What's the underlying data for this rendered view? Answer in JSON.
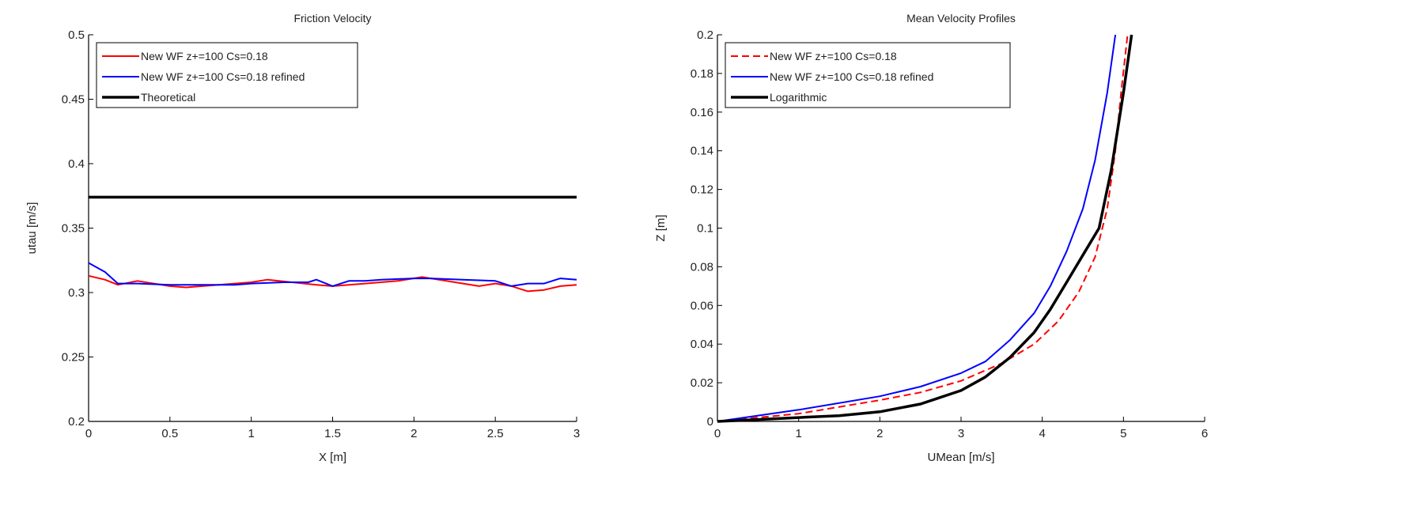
{
  "chart_data": [
    {
      "type": "line",
      "title": "Friction Velocity",
      "xlabel": "X [m]",
      "ylabel": "utau [m/s]",
      "xlim": [
        0,
        3
      ],
      "ylim": [
        0.2,
        0.5
      ],
      "xticks": [
        0,
        0.5,
        1,
        1.5,
        2,
        2.5,
        3
      ],
      "xtick_labels": [
        "0",
        "0.5",
        "1",
        "1.5",
        "2",
        "2.5",
        "3"
      ],
      "yticks": [
        0.2,
        0.25,
        0.3,
        0.35,
        0.4,
        0.45,
        0.5
      ],
      "ytick_labels": [
        "0.2",
        "0.25",
        "0.3",
        "0.35",
        "0.4",
        "0.45",
        "0.5"
      ],
      "legend_position": "top-left",
      "series": [
        {
          "name": "New WF z+=100 Cs=0.18",
          "color": "#ff0000",
          "style": "solid",
          "width": 2,
          "x": [
            0,
            0.1,
            0.18,
            0.3,
            0.4,
            0.5,
            0.6,
            0.8,
            1.0,
            1.1,
            1.25,
            1.4,
            1.5,
            1.7,
            1.9,
            2.05,
            2.2,
            2.4,
            2.5,
            2.6,
            2.7,
            2.8,
            2.9,
            3.0
          ],
          "y": [
            0.313,
            0.31,
            0.306,
            0.309,
            0.307,
            0.305,
            0.304,
            0.306,
            0.308,
            0.31,
            0.308,
            0.306,
            0.305,
            0.307,
            0.309,
            0.312,
            0.309,
            0.305,
            0.307,
            0.305,
            0.301,
            0.302,
            0.305,
            0.306
          ]
        },
        {
          "name": "New WF z+=100 Cs=0.18 refined",
          "color": "#0000ff",
          "style": "solid",
          "width": 2,
          "x": [
            0,
            0.1,
            0.18,
            0.3,
            0.5,
            0.7,
            0.9,
            1.0,
            1.2,
            1.35,
            1.4,
            1.5,
            1.6,
            1.7,
            1.8,
            2.0,
            2.1,
            2.3,
            2.5,
            2.6,
            2.7,
            2.8,
            2.9,
            3.0
          ],
          "y": [
            0.323,
            0.316,
            0.307,
            0.307,
            0.306,
            0.306,
            0.306,
            0.307,
            0.308,
            0.308,
            0.31,
            0.305,
            0.309,
            0.309,
            0.31,
            0.311,
            0.311,
            0.31,
            0.309,
            0.305,
            0.307,
            0.307,
            0.311,
            0.31
          ]
        },
        {
          "name": "Theoretical",
          "color": "#000000",
          "style": "solid",
          "width": 3.5,
          "x": [
            0,
            3
          ],
          "y": [
            0.374,
            0.374
          ]
        }
      ]
    },
    {
      "type": "line",
      "title": "Mean Velocity Profiles",
      "xlabel": "UMean [m/s]",
      "ylabel": "Z [m]",
      "xlim": [
        0,
        6
      ],
      "ylim": [
        0,
        0.2
      ],
      "xticks": [
        0,
        1,
        2,
        3,
        4,
        5,
        6
      ],
      "xtick_labels": [
        "0",
        "1",
        "2",
        "3",
        "4",
        "5",
        "6"
      ],
      "yticks": [
        0,
        0.02,
        0.04,
        0.06,
        0.08,
        0.1,
        0.12,
        0.14,
        0.16,
        0.18,
        0.2
      ],
      "ytick_labels": [
        "0",
        "0.02",
        "0.04",
        "0.06",
        "0.08",
        "0.1",
        "0.12",
        "0.14",
        "0.16",
        "0.18",
        "0.2"
      ],
      "legend_position": "top-left",
      "series": [
        {
          "name": "New WF z+=100 Cs=0.18",
          "color": "#ff0000",
          "style": "dashed",
          "width": 2,
          "x": [
            0,
            1,
            2,
            2.5,
            3,
            3.5,
            3.9,
            4.2,
            4.45,
            4.65,
            4.8,
            4.9,
            4.97,
            5.05
          ],
          "y": [
            0,
            0.004,
            0.011,
            0.015,
            0.021,
            0.03,
            0.04,
            0.052,
            0.067,
            0.085,
            0.11,
            0.14,
            0.17,
            0.2
          ]
        },
        {
          "name": "New WF z+=100 Cs=0.18 refined",
          "color": "#0000ff",
          "style": "solid",
          "width": 2,
          "x": [
            0,
            1,
            2,
            2.5,
            3,
            3.3,
            3.6,
            3.9,
            4.1,
            4.3,
            4.5,
            4.65,
            4.8,
            4.9
          ],
          "y": [
            0,
            0.006,
            0.013,
            0.018,
            0.025,
            0.031,
            0.042,
            0.056,
            0.07,
            0.088,
            0.11,
            0.135,
            0.17,
            0.2
          ]
        },
        {
          "name": "Logarithmic",
          "color": "#000000",
          "style": "solid",
          "width": 3.5,
          "x": [
            0,
            0.5,
            1,
            1.5,
            2,
            2.5,
            3,
            3.3,
            3.6,
            3.9,
            4.1,
            4.3,
            4.5,
            4.7,
            4.85,
            5.0,
            5.1
          ],
          "y": [
            0,
            0.001,
            0.002,
            0.003,
            0.005,
            0.009,
            0.016,
            0.023,
            0.033,
            0.046,
            0.058,
            0.072,
            0.086,
            0.1,
            0.13,
            0.17,
            0.2
          ]
        }
      ]
    }
  ]
}
